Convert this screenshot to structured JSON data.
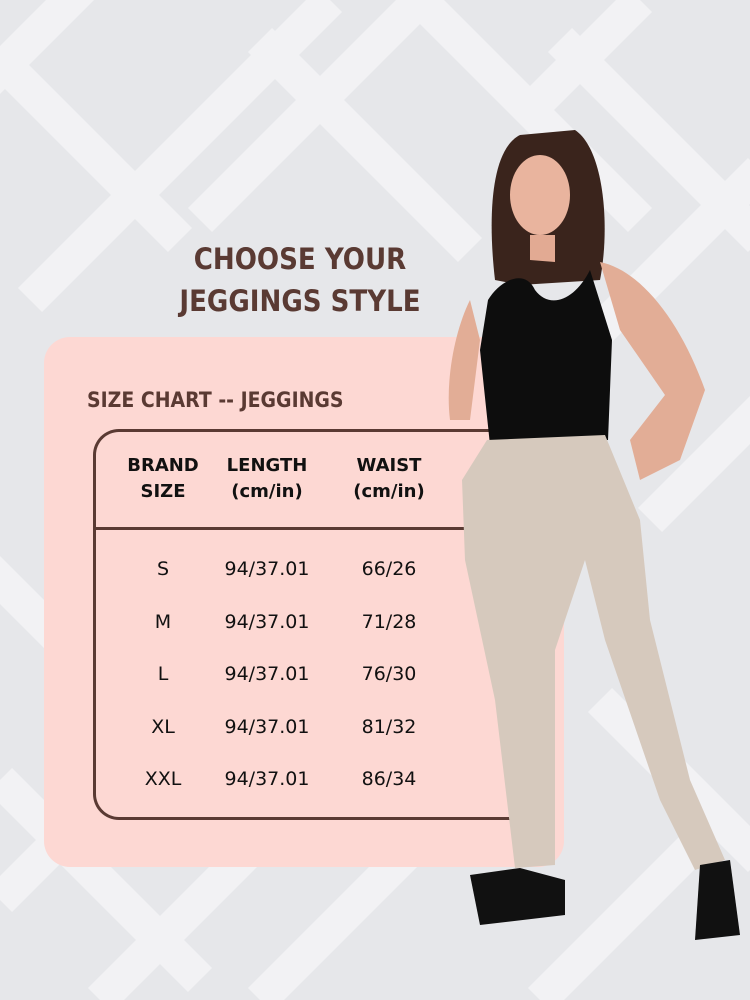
{
  "heading": {
    "line1": "CHOOSE YOUR",
    "line2": "JEGGINGS STYLE"
  },
  "colors": {
    "brand_brown": "#5a3a33",
    "card_pink": "#fdd8d3",
    "background": "#e6e7ea"
  },
  "size_chart": {
    "title": "SIZE CHART -- JEGGINGS",
    "headers": [
      [
        "BRAND",
        "SIZE"
      ],
      [
        "LENGTH",
        "(cm/in)"
      ],
      [
        "WAIST",
        "(cm/in)"
      ]
    ],
    "rows": [
      {
        "size": "S",
        "length": "94/37.01",
        "waist": "66/26"
      },
      {
        "size": "M",
        "length": "94/37.01",
        "waist": "71/28"
      },
      {
        "size": "L",
        "length": "94/37.01",
        "waist": "76/30"
      },
      {
        "size": "XL",
        "length": "94/37.01",
        "waist": "81/32"
      },
      {
        "size": "XXL",
        "length": "94/37.01",
        "waist": "86/34"
      }
    ]
  }
}
